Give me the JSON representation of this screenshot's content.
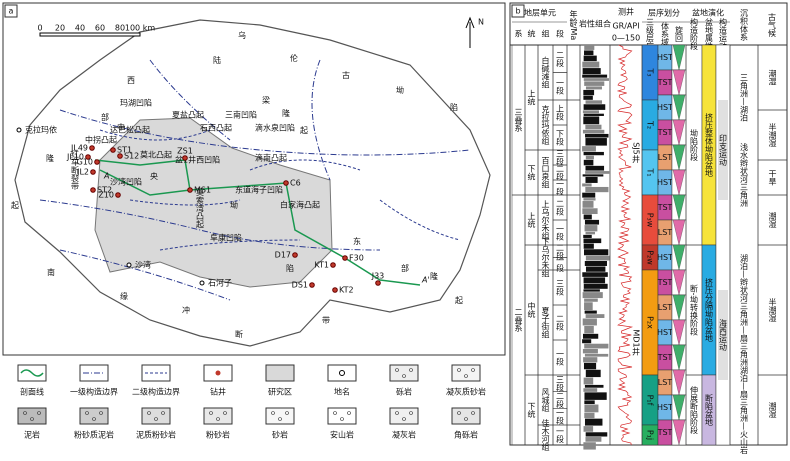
{
  "panel_a": {
    "label": "a",
    "north": "N",
    "scale": [
      "0",
      "20",
      "40",
      "60",
      "80",
      "100 km"
    ],
    "regions": [
      "乌伦古坳陷",
      "陆梁隆起",
      "西部隆起",
      "中央坳陷",
      "东部隆起",
      "南缘冲断带"
    ],
    "places": [
      "玛湖凹陷",
      "夏盐凸起",
      "三南凹陷",
      "达巴松凸起",
      "石西凸起",
      "滴水泉凹陷",
      "盆1井西凹陷",
      "滴南凸起",
      "克拉玛依",
      "中拐凸起",
      "红车断裂带",
      "沙湾凹陷",
      "莫索湾凸起",
      "东道海子凹陷",
      "白家海凸起",
      "阜康凹陷",
      "莫北凸起",
      "石河子",
      "沙湾"
    ],
    "wells": [
      "JL49",
      "JL10",
      "G10",
      "ST1",
      "S12",
      "JL2",
      "ST2",
      "ZS1",
      "MS1",
      "C6",
      "Z10",
      "D17",
      "KT1",
      "F30",
      "DS1",
      "KT2",
      "J33"
    ],
    "section": [
      "A",
      "A'"
    ]
  },
  "legend": [
    "剖面线",
    "一级构造边界",
    "二级构造边界",
    "钻井",
    "研究区",
    "地名",
    "砾岩",
    "凝灰质砂岩",
    "泥岩",
    "粉砂质泥岩",
    "泥质粉砂岩",
    "粉砂岩",
    "砂岩",
    "安山岩",
    "凝灰岩",
    "角砾岩"
  ],
  "panel_b": {
    "label": "b",
    "headers": {
      "strat_unit": "地层单元",
      "system": "系",
      "series": "统",
      "formation": "组",
      "member": "段",
      "age": "年龄/Ma",
      "lithology": "岩性组合",
      "log": "测井",
      "gr": "GR/API",
      "gr_range": "0—150",
      "sequence": "层序划分",
      "seq3": "三级层序",
      "tract": "体系域",
      "cycle": "旋回",
      "evolution": "盆地演化",
      "stage": "构造阶段",
      "basin": "盆地属性",
      "movement": "构造运动",
      "sedimentary": "沉积体系",
      "climate": "古气候"
    },
    "systems": [
      "三叠系",
      "二叠系"
    ],
    "series": [
      "上统",
      "下统",
      "上统",
      "中统",
      "下统"
    ],
    "formations": [
      "白碱滩组",
      "克拉玛依组",
      "百口泉组",
      "上乌尔禾组",
      "下乌尔禾组",
      "夏子街组",
      "风城组",
      "佳木河组"
    ],
    "members": [
      [
        "二段",
        "一段"
      ],
      [
        "上段",
        "下段"
      ],
      [
        "三段",
        "二段",
        "一段"
      ],
      [
        "二段",
        "一段"
      ],
      [
        "二段",
        "一段"
      ],
      [
        "三段",
        "二段",
        "一段"
      ],
      [
        "三段",
        "二段",
        "一段"
      ],
      [
        "一段"
      ]
    ],
    "seq3": [
      "T₃",
      "T₂",
      "T₁",
      "P₃w",
      "P₂w",
      "P₂x",
      "P₁f",
      "P₁j"
    ],
    "tracts": [
      "HST",
      "TST",
      "HST",
      "TST",
      "LST",
      "HST",
      "TST",
      "LST",
      "HST",
      "TST",
      "LST",
      "HST",
      "TST",
      "LST",
      "HST",
      "TST"
    ],
    "wells": [
      "SJ5井",
      "MD1井"
    ],
    "stages": [
      "坳陷阶段",
      "断-坳转换阶段",
      "伸展断陷阶段"
    ],
    "basins": [
      "挤压整体坳陷盆地",
      "挤压分隔坳陷盆地",
      "断陷盆地"
    ],
    "movements": [
      "印支运动",
      "海西运动"
    ],
    "sedimentary": [
      "三角洲—湖泊",
      "浅水辫状河三角洲",
      "湖泊—辫状河三角洲—扇三角洲",
      "湖泊—扇三角洲—火山岩"
    ],
    "climate": [
      "潮湿",
      "半潮湿",
      "干旱",
      "潮湿",
      "半潮湿",
      "潮湿"
    ]
  }
}
